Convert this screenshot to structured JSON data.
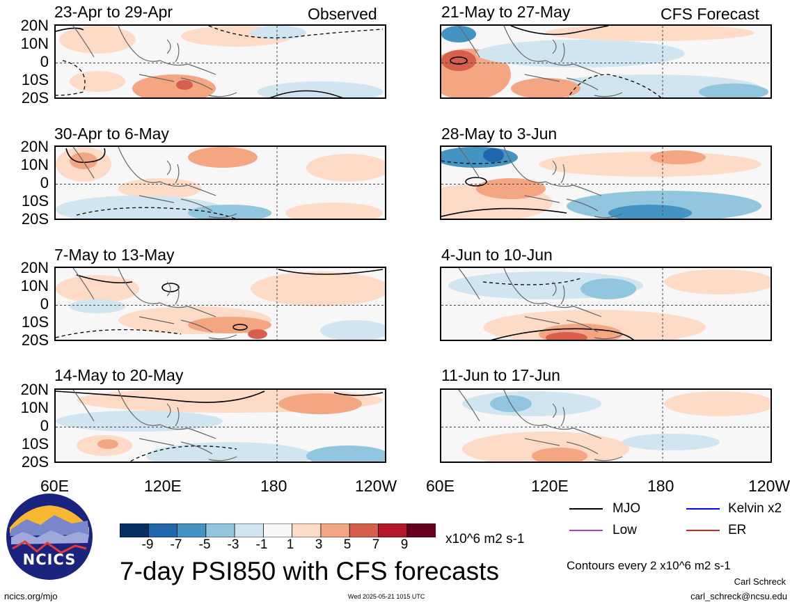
{
  "header": {
    "observed_tag": "Observed",
    "forecast_tag": "CFS Forecast"
  },
  "panels": [
    {
      "title": "23-Apr to 29-Apr",
      "group": "observed"
    },
    {
      "title": "30-Apr to 6-May",
      "group": "observed"
    },
    {
      "title": "7-May to 13-May",
      "group": "observed"
    },
    {
      "title": "14-May to 20-May",
      "group": "observed"
    },
    {
      "title": "21-May to 27-May",
      "group": "forecast"
    },
    {
      "title": "28-May to 3-Jun",
      "group": "forecast"
    },
    {
      "title": "4-Jun to 10-Jun",
      "group": "forecast"
    },
    {
      "title": "11-Jun to 17-Jun",
      "group": "forecast"
    }
  ],
  "latitude_labels": [
    "20N",
    "10N",
    "0",
    "10S",
    "20S"
  ],
  "longitude_labels": [
    "60E",
    "120E",
    "180",
    "120W"
  ],
  "colorbar": {
    "ticks": [
      "-9",
      "-7",
      "-5",
      "-3",
      "-1",
      "1",
      "3",
      "5",
      "7",
      "9"
    ],
    "colors": [
      "#053061",
      "#2166ac",
      "#4393c3",
      "#92c5de",
      "#d1e5f0",
      "#f7f7f7",
      "#fddbc7",
      "#f4a582",
      "#d6604d",
      "#b2182b",
      "#67001f"
    ],
    "units": "x10^6 m2 s-1"
  },
  "title": "7-day PSI850 with CFS forecasts",
  "legend": {
    "items": [
      {
        "label": "MJO",
        "color": "#000000"
      },
      {
        "label": "Kelvin x2",
        "color": "#0000ff"
      },
      {
        "label": "Low",
        "color": "#a040e0"
      },
      {
        "label": "ER",
        "color": "#e02020"
      }
    ],
    "contour_note": "Contours every 2 x10^6 m2 s-1"
  },
  "logo": {
    "text": "NCICS"
  },
  "footer": {
    "url": "ncics.org/mjo",
    "timestamp": "Wed 2025-05-21 1015 UTC",
    "author": "Carl Schreck",
    "email": "carl_schreck@ncsu.edu"
  }
}
